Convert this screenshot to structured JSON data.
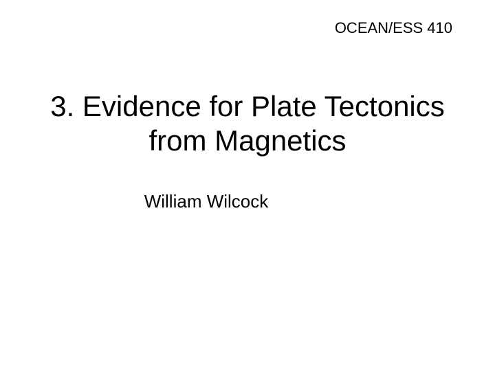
{
  "course_label": "OCEAN/ESS 410",
  "title": "3. Evidence for Plate Tectonics from Magnetics",
  "author": "William Wilcock",
  "colors": {
    "background": "#ffffff",
    "text": "#000000"
  },
  "typography": {
    "course_label_fontsize": 22,
    "title_fontsize": 42,
    "author_fontsize": 26,
    "font_family": "Arial"
  }
}
